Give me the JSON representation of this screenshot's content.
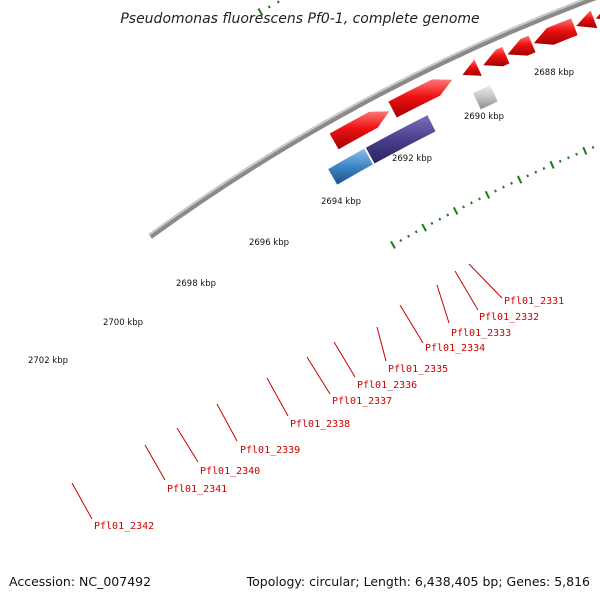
{
  "title": "Pseudomonas fluorescens Pf0-1, complete genome",
  "accession": "Accession: NC_007492",
  "summary": "Topology: circular; Length: 6,438,405 bp; Genes: 5,816",
  "colors": {
    "backbone": "#8a8a8a",
    "cds": "#ee1111",
    "cog_blue": "#4b3f8c",
    "cog_gray": "#c4c4c4",
    "cog_dark": "#555555",
    "cog_olive": "#6f8f22",
    "cog_lightblue": "#3d84c4",
    "tick": "#1e7a1e",
    "label": "#cc0000"
  },
  "kbp_labels": [
    {
      "text": "2688 kbp",
      "pos": 2688
    },
    {
      "text": "2690 kbp",
      "pos": 2690
    },
    {
      "text": "2692 kbp",
      "pos": 2692
    },
    {
      "text": "2694 kbp",
      "pos": 2694
    },
    {
      "text": "2696 kbp",
      "pos": 2696
    },
    {
      "text": "2698 kbp",
      "pos": 2698
    },
    {
      "text": "2700 kbp",
      "pos": 2700
    },
    {
      "text": "2702 kbp",
      "pos": 2702
    }
  ],
  "genes": [
    {
      "name": "Pfl01_2331"
    },
    {
      "name": "Pfl01_2332"
    },
    {
      "name": "Pfl01_2333"
    },
    {
      "name": "Pfl01_2334"
    },
    {
      "name": "Pfl01_2335"
    },
    {
      "name": "Pfl01_2336"
    },
    {
      "name": "Pfl01_2337"
    },
    {
      "name": "Pfl01_2338"
    },
    {
      "name": "Pfl01_2339"
    },
    {
      "name": "Pfl01_2340"
    },
    {
      "name": "Pfl01_2341"
    },
    {
      "name": "Pfl01_2342"
    }
  ]
}
